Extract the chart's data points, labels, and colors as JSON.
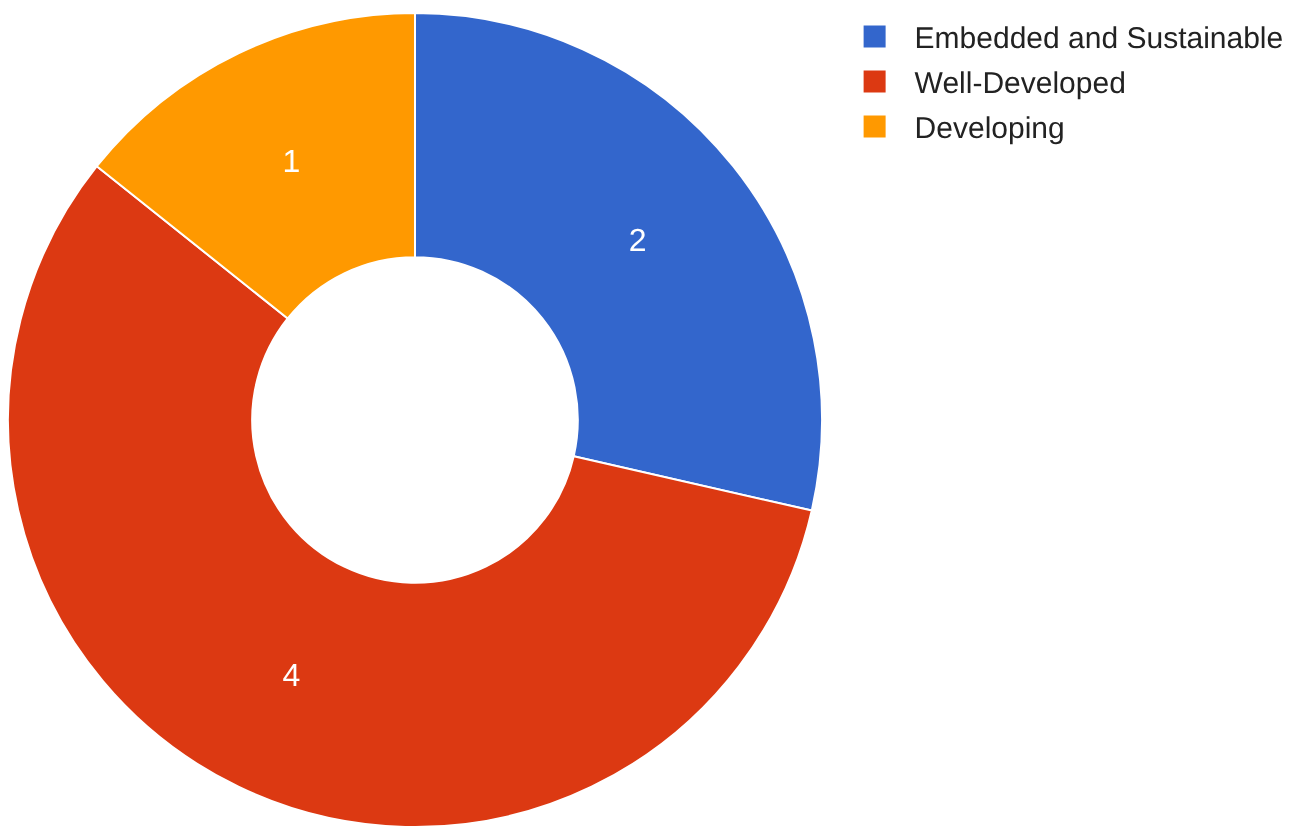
{
  "chart_data": {
    "type": "donut",
    "categories": [
      "Embedded and Sustainable",
      "Well-Developed",
      "Developing"
    ],
    "values": [
      2,
      4,
      1
    ],
    "colors": [
      "#3366cc",
      "#dc3912",
      "#ff9900"
    ],
    "data_labels": true,
    "legend": "top right"
  }
}
